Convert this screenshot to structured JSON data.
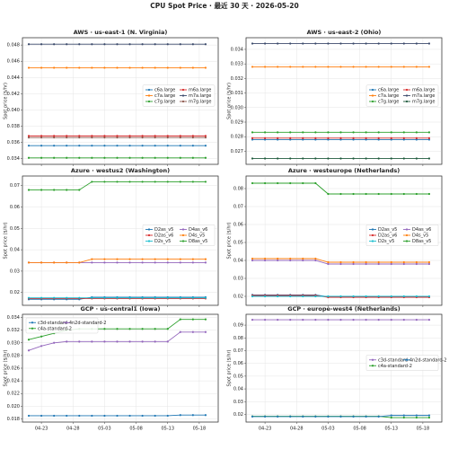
{
  "title": "CPU Spot Price · 最近 30 天 · 2026-05-20",
  "chart_data": [
    {
      "type": "line",
      "title": "AWS · us-east-1 (N. Virginia)",
      "ylabel": "Spot price ($/hr)",
      "legend": "center right",
      "grid": true,
      "x": [
        "04-21",
        "04-23",
        "04-25",
        "04-27",
        "04-29",
        "05-01",
        "05-03",
        "05-05",
        "05-07",
        "05-09",
        "05-11",
        "05-13",
        "05-15",
        "05-17",
        "05-19"
      ],
      "xlim": [
        "04-20",
        "05-21"
      ],
      "xticks": [
        "04-23",
        "04-28",
        "05-03",
        "05-08",
        "05-13",
        "05-18"
      ],
      "ylim": [
        0.0333,
        0.0489
      ],
      "yticks": [
        0.034,
        0.036,
        0.038,
        {
          "value": 0.04,
          "label": "0.040"
        },
        0.042,
        0.044,
        0.046,
        0.048
      ],
      "series": [
        {
          "name": "c6a.large",
          "color": "#1f77b4",
          "values": [
            0.0356,
            0.0356,
            0.0356,
            0.0356,
            0.0356,
            0.0356,
            0.0356,
            0.0356,
            0.0356,
            0.0356,
            0.0356,
            0.0356,
            0.0356,
            0.0356,
            0.0356
          ]
        },
        {
          "name": "c7a.large",
          "color": "#ff7f0e",
          "values": [
            0.0452,
            0.0452,
            0.0452,
            0.0452,
            0.0452,
            0.0452,
            0.0452,
            0.0452,
            0.0452,
            0.0452,
            0.0452,
            0.0452,
            0.0452,
            0.0452,
            0.0452
          ]
        },
        {
          "name": "c7g.large",
          "color": "#2ca02c",
          "values": [
            0.0341,
            0.0341,
            0.0341,
            0.0341,
            0.0341,
            0.0341,
            0.0341,
            0.0341,
            0.0341,
            0.0341,
            0.0341,
            0.0341,
            0.0341,
            0.0341,
            0.0341
          ]
        },
        {
          "name": "m6a.large",
          "color": "#d62728",
          "values": [
            0.0368,
            0.0368,
            0.0368,
            0.0368,
            0.0368,
            0.0368,
            0.0368,
            0.0368,
            0.0368,
            0.0368,
            0.0368,
            0.0368,
            0.0368,
            0.0368,
            0.0368
          ]
        },
        {
          "name": "m7a.large",
          "color": "#3b4a6b",
          "values": [
            0.0481,
            0.0481,
            0.0481,
            0.0481,
            0.0481,
            0.0481,
            0.0481,
            0.0481,
            0.0481,
            0.0481,
            0.0481,
            0.0481,
            0.0481,
            0.0481,
            0.0481
          ]
        },
        {
          "name": "m7g.large",
          "color": "#8c564b",
          "values": [
            0.0366,
            0.0366,
            0.0366,
            0.0366,
            0.0366,
            0.0366,
            0.0366,
            0.0366,
            0.0366,
            0.0366,
            0.0366,
            0.0366,
            0.0366,
            0.0366,
            0.0366
          ]
        }
      ]
    },
    {
      "type": "line",
      "title": "AWS · us-east-2 (Ohio)",
      "ylabel": "Spot price ($/hr)",
      "legend": "center right",
      "grid": true,
      "x": [
        "04-21",
        "04-23",
        "04-25",
        "04-27",
        "04-29",
        "05-01",
        "05-03",
        "05-05",
        "05-07",
        "05-09",
        "05-11",
        "05-13",
        "05-15",
        "05-17",
        "05-19"
      ],
      "xlim": [
        "04-20",
        "05-21"
      ],
      "xticks": [
        "04-23",
        "04-28",
        "05-03",
        "05-08",
        "05-13",
        "05-18"
      ],
      "ylim": [
        0.0261,
        0.0348
      ],
      "yticks": [
        0.027,
        0.028,
        0.029,
        {
          "value": 0.03,
          "label": "0.030"
        },
        0.031,
        0.032,
        0.033,
        0.034
      ],
      "series": [
        {
          "name": "c6a.large",
          "color": "#1f77b4",
          "values": [
            0.0278,
            0.0278,
            0.0278,
            0.0278,
            0.0278,
            0.0278,
            0.0278,
            0.0278,
            0.0278,
            0.0278,
            0.0278,
            0.0278,
            0.0278,
            0.0278,
            0.0278
          ]
        },
        {
          "name": "c7a.large",
          "color": "#ff7f0e",
          "values": [
            0.0328,
            0.0328,
            0.0328,
            0.0328,
            0.0328,
            0.0328,
            0.0328,
            0.0328,
            0.0328,
            0.0328,
            0.0328,
            0.0328,
            0.0328,
            0.0328,
            0.0328
          ]
        },
        {
          "name": "c7g.large",
          "color": "#2ca02c",
          "values": [
            0.0283,
            0.0283,
            0.0283,
            0.0283,
            0.0283,
            0.0283,
            0.0283,
            0.0283,
            0.0283,
            0.0283,
            0.0283,
            0.0283,
            0.0283,
            0.0283,
            0.0283
          ]
        },
        {
          "name": "m6a.large",
          "color": "#d62728",
          "values": [
            0.0279,
            0.0279,
            0.0279,
            0.0279,
            0.0279,
            0.0279,
            0.0279,
            0.0279,
            0.0279,
            0.0279,
            0.0279,
            0.0279,
            0.0279,
            0.0279,
            0.0279
          ]
        },
        {
          "name": "m7a.large",
          "color": "#3b4a6b",
          "values": [
            0.0344,
            0.0344,
            0.0344,
            0.0344,
            0.0344,
            0.0344,
            0.0344,
            0.0344,
            0.0344,
            0.0344,
            0.0344,
            0.0344,
            0.0344,
            0.0344,
            0.0344
          ]
        },
        {
          "name": "m7g.large",
          "color": "#1e5a3c",
          "values": [
            0.0265,
            0.0265,
            0.0265,
            0.0265,
            0.0265,
            0.0265,
            0.0265,
            0.0265,
            0.0265,
            0.0265,
            0.0265,
            0.0265,
            0.0265,
            0.0265,
            0.0265
          ]
        }
      ]
    },
    {
      "type": "line",
      "title": "Azure · westus2 (Washington)",
      "ylabel": "Spot price ($/hr)",
      "legend": "center right",
      "grid": true,
      "x": [
        "04-21",
        "04-23",
        "04-25",
        "04-27",
        "04-29",
        "05-01",
        "05-03",
        "05-05",
        "05-07",
        "05-09",
        "05-11",
        "05-13",
        "05-15",
        "05-17",
        "05-19"
      ],
      "xlim": [
        "04-20",
        "05-21"
      ],
      "xticks": [
        "04-23",
        "04-28",
        "05-03",
        "05-08",
        "05-13",
        "05-18"
      ],
      "ylim": [
        0.014,
        0.0745
      ],
      "yticks": [
        0.02,
        0.03,
        0.04,
        0.05,
        0.06,
        0.07
      ],
      "series": [
        {
          "name": "D2as_v5",
          "color": "#1f77b4",
          "values": [
            0.0168,
            0.0168,
            0.0168,
            0.0168,
            0.0168,
            0.0178,
            0.0178,
            0.0178,
            0.0178,
            0.0178,
            0.0178,
            0.0178,
            0.0178,
            0.0178,
            0.0178
          ]
        },
        {
          "name": "D2as_v6",
          "color": "#d62728",
          "values": [
            0.0172,
            0.0172,
            0.0172,
            0.0172,
            0.0172,
            0.0172,
            0.0172,
            0.0172,
            0.0172,
            0.0172,
            0.0172,
            0.0172,
            0.0172,
            0.0172,
            0.0172
          ]
        },
        {
          "name": "D2s_v5",
          "color": "#17becf",
          "values": [
            0.0175,
            0.0175,
            0.0175,
            0.0175,
            0.0175,
            0.0175,
            0.0175,
            0.0175,
            0.0175,
            0.0175,
            0.0175,
            0.0175,
            0.0175,
            0.0175,
            0.0175
          ]
        },
        {
          "name": "D4as_v6",
          "color": "#9467bd",
          "values": [
            0.034,
            0.034,
            0.034,
            0.034,
            0.034,
            0.034,
            0.034,
            0.034,
            0.034,
            0.034,
            0.034,
            0.034,
            0.034,
            0.034,
            0.034
          ]
        },
        {
          "name": "D4s_v5",
          "color": "#ff7f0e",
          "values": [
            0.034,
            0.034,
            0.034,
            0.034,
            0.034,
            0.0356,
            0.0356,
            0.0356,
            0.0356,
            0.0356,
            0.0356,
            0.0356,
            0.0356,
            0.0356,
            0.0356
          ]
        },
        {
          "name": "D8as_v5",
          "color": "#2ca02c",
          "values": [
            0.068,
            0.068,
            0.068,
            0.068,
            0.068,
            0.0718,
            0.0718,
            0.0718,
            0.0718,
            0.0718,
            0.0718,
            0.0718,
            0.0718,
            0.0718,
            0.0718
          ]
        }
      ]
    },
    {
      "type": "line",
      "title": "Azure · westeurope (Netherlands)",
      "ylabel": "Spot price ($/hr)",
      "legend": "center right",
      "grid": true,
      "x": [
        "04-21",
        "04-23",
        "04-25",
        "04-27",
        "04-29",
        "05-01",
        "05-03",
        "05-05",
        "05-07",
        "05-09",
        "05-11",
        "05-13",
        "05-15",
        "05-17",
        "05-19"
      ],
      "xlim": [
        "04-20",
        "05-21"
      ],
      "xticks": [
        "04-23",
        "04-28",
        "05-03",
        "05-08",
        "05-13",
        "05-18"
      ],
      "ylim": [
        0.015,
        0.087
      ],
      "yticks": [
        0.02,
        0.03,
        0.04,
        0.05,
        0.06,
        0.07,
        0.08
      ],
      "series": [
        {
          "name": "D2as_v5",
          "color": "#1f77b4",
          "values": [
            0.0208,
            0.0208,
            0.0208,
            0.0208,
            0.0208,
            0.0208,
            0.0198,
            0.0198,
            0.0198,
            0.0198,
            0.0198,
            0.0198,
            0.0198,
            0.0198,
            0.0198
          ]
        },
        {
          "name": "D2as_v6",
          "color": "#d62728",
          "values": [
            0.0205,
            0.0205,
            0.0205,
            0.0205,
            0.0205,
            0.0205,
            0.0195,
            0.0195,
            0.0195,
            0.0195,
            0.0195,
            0.0195,
            0.0195,
            0.0195,
            0.0195
          ]
        },
        {
          "name": "D2s_v5",
          "color": "#17becf",
          "values": [
            0.02,
            0.02,
            0.02,
            0.02,
            0.02,
            0.02,
            0.02,
            0.02,
            0.02,
            0.02,
            0.02,
            0.02,
            0.02,
            0.02,
            0.02
          ]
        },
        {
          "name": "D4as_v6",
          "color": "#9467bd",
          "values": [
            0.04,
            0.04,
            0.04,
            0.04,
            0.04,
            0.04,
            0.038,
            0.038,
            0.038,
            0.038,
            0.038,
            0.038,
            0.038,
            0.038,
            0.038
          ]
        },
        {
          "name": "D4s_v5",
          "color": "#ff7f0e",
          "values": [
            0.041,
            0.041,
            0.041,
            0.041,
            0.041,
            0.041,
            0.039,
            0.039,
            0.039,
            0.039,
            0.039,
            0.039,
            0.039,
            0.039,
            0.039
          ]
        },
        {
          "name": "D8as_v5",
          "color": "#2ca02c",
          "values": [
            0.083,
            0.083,
            0.083,
            0.083,
            0.083,
            0.083,
            0.077,
            0.077,
            0.077,
            0.077,
            0.077,
            0.077,
            0.077,
            0.077,
            0.077
          ]
        }
      ]
    },
    {
      "type": "line",
      "title": "GCP · us-central1 (Iowa)",
      "ylabel": "Spot price ($/hr)",
      "legend": "upper left",
      "grid": true,
      "x": [
        "04-21",
        "04-23",
        "04-25",
        "04-27",
        "04-29",
        "05-01",
        "05-03",
        "05-05",
        "05-07",
        "05-09",
        "05-11",
        "05-13",
        "05-15",
        "05-17",
        "05-19"
      ],
      "xlim": [
        "04-20",
        "05-21"
      ],
      "xticks": [
        "04-23",
        "04-28",
        "05-03",
        "05-08",
        "05-13",
        "05-18"
      ],
      "ylim": [
        0.0175,
        0.0345
      ],
      "yticks": [
        0.018,
        {
          "value": 0.02,
          "label": "0.020"
        },
        0.022,
        0.024,
        0.026,
        0.028,
        {
          "value": 0.03,
          "label": "0.030"
        },
        0.032,
        0.034
      ],
      "series": [
        {
          "name": "c3d-standard-4",
          "color": "#1f77b4",
          "values": [
            0.0185,
            0.0185,
            0.0185,
            0.0185,
            0.0185,
            0.0185,
            0.0185,
            0.0185,
            0.0185,
            0.0185,
            0.0185,
            0.0185,
            0.0186,
            0.0186,
            0.0186
          ]
        },
        {
          "name": "c4a-standard-2",
          "color": "#2ca02c",
          "values": [
            0.0305,
            0.031,
            0.0315,
            0.032,
            0.0322,
            0.0322,
            0.0322,
            0.0322,
            0.0322,
            0.0322,
            0.0322,
            0.0322,
            0.0337,
            0.0337,
            0.0337
          ]
        },
        {
          "name": "n2d-standard-2",
          "color": "#9467bd",
          "values": [
            0.0288,
            0.0295,
            0.03,
            0.0302,
            0.0302,
            0.0302,
            0.0302,
            0.0302,
            0.0302,
            0.0302,
            0.0302,
            0.0302,
            0.0317,
            0.0317,
            0.0317
          ]
        }
      ]
    },
    {
      "type": "line",
      "title": "GCP · europe-west4 (Netherlands)",
      "ylabel": "Spot price ($/hr)",
      "legend": "center right",
      "grid": true,
      "x": [
        "04-21",
        "04-23",
        "04-25",
        "04-27",
        "04-29",
        "05-01",
        "05-03",
        "05-05",
        "05-07",
        "05-09",
        "05-11",
        "05-13",
        "05-15",
        "05-17",
        "05-19"
      ],
      "xlim": [
        "04-20",
        "05-21"
      ],
      "xticks": [
        "04-23",
        "04-28",
        "05-03",
        "05-08",
        "05-13",
        "05-18"
      ],
      "ylim": [
        0.014,
        0.0985
      ],
      "yticks": [
        0.02,
        0.03,
        0.04,
        0.05,
        0.06,
        0.07,
        0.08,
        0.09
      ],
      "series": [
        {
          "name": "c3d-standard-4",
          "color": "#9467bd",
          "values": [
            0.0942,
            0.0942,
            0.0942,
            0.0942,
            0.0942,
            0.0942,
            0.0942,
            0.0942,
            0.0942,
            0.0942,
            0.0942,
            0.0942,
            0.0942,
            0.0942,
            0.0942
          ]
        },
        {
          "name": "c4a-standard-2",
          "color": "#2ca02c",
          "values": [
            0.0185,
            0.0185,
            0.0185,
            0.0185,
            0.0185,
            0.0185,
            0.0185,
            0.0185,
            0.0185,
            0.0185,
            0.0185,
            0.0175,
            0.0175,
            0.0175,
            0.0175
          ]
        },
        {
          "name": "n2d-standard-2",
          "color": "#1f77b4",
          "values": [
            0.0183,
            0.0183,
            0.0183,
            0.0183,
            0.0183,
            0.0183,
            0.0183,
            0.0183,
            0.0183,
            0.0183,
            0.0183,
            0.0192,
            0.0192,
            0.0192,
            0.0192
          ]
        }
      ]
    }
  ]
}
